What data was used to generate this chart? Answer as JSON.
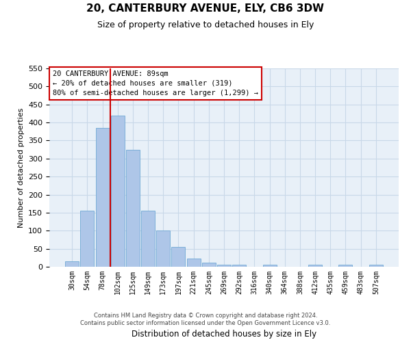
{
  "title": "20, CANTERBURY AVENUE, ELY, CB6 3DW",
  "subtitle": "Size of property relative to detached houses in Ely",
  "xlabel": "Distribution of detached houses by size in Ely",
  "ylabel": "Number of detached properties",
  "bar_labels": [
    "30sqm",
    "54sqm",
    "78sqm",
    "102sqm",
    "125sqm",
    "149sqm",
    "173sqm",
    "197sqm",
    "221sqm",
    "245sqm",
    "269sqm",
    "292sqm",
    "316sqm",
    "340sqm",
    "364sqm",
    "388sqm",
    "412sqm",
    "435sqm",
    "459sqm",
    "483sqm",
    "507sqm"
  ],
  "bar_heights": [
    15,
    155,
    385,
    420,
    325,
    155,
    100,
    55,
    22,
    12,
    5,
    5,
    0,
    5,
    0,
    0,
    5,
    0,
    5,
    0,
    5
  ],
  "bar_color": "#aec6e8",
  "bar_edge_color": "#6fa8d4",
  "grid_color": "#c8d8e8",
  "background_color": "#e8f0f8",
  "vline_color": "#cc0000",
  "annotation_title": "20 CANTERBURY AVENUE: 89sqm",
  "annotation_line1": "← 20% of detached houses are smaller (319)",
  "annotation_line2": "80% of semi-detached houses are larger (1,299) →",
  "annotation_box_color": "#cc0000",
  "ylim": [
    0,
    550
  ],
  "yticks": [
    0,
    50,
    100,
    150,
    200,
    250,
    300,
    350,
    400,
    450,
    500,
    550
  ],
  "footer_line1": "Contains HM Land Registry data © Crown copyright and database right 2024.",
  "footer_line2": "Contains public sector information licensed under the Open Government Licence v3.0."
}
